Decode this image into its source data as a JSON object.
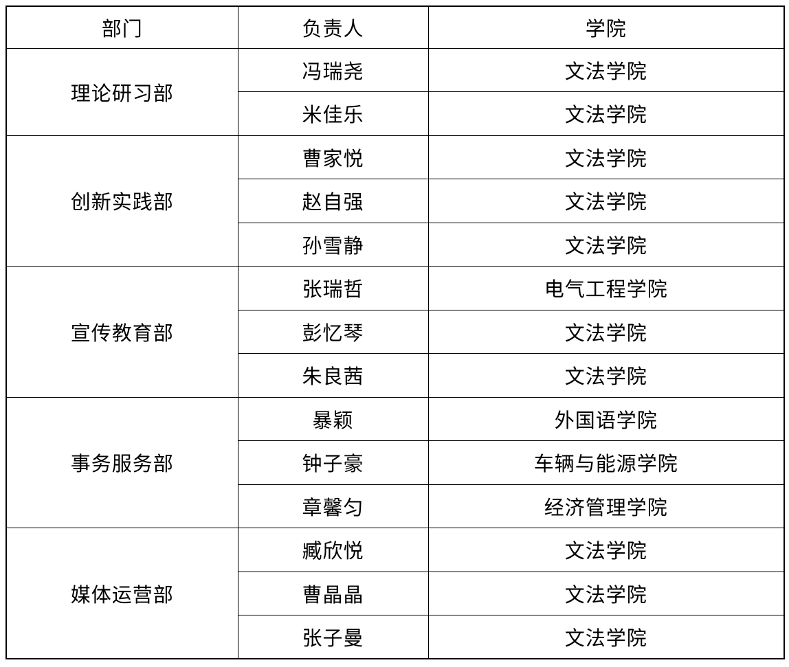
{
  "table": {
    "headers": {
      "department": "部门",
      "leader": "负责人",
      "college": "学院"
    },
    "groups": [
      {
        "department": "理论研习部",
        "members": [
          {
            "name": "冯瑞尧",
            "college": "文法学院"
          },
          {
            "name": "米佳乐",
            "college": "文法学院"
          }
        ]
      },
      {
        "department": "创新实践部",
        "members": [
          {
            "name": "曹家悦",
            "college": "文法学院"
          },
          {
            "name": "赵自强",
            "college": "文法学院"
          },
          {
            "name": "孙雪静",
            "college": "文法学院"
          }
        ]
      },
      {
        "department": "宣传教育部",
        "members": [
          {
            "name": "张瑞哲",
            "college": "电气工程学院"
          },
          {
            "name": "彭忆琴",
            "college": "文法学院"
          },
          {
            "name": "朱良茜",
            "college": "文法学院"
          }
        ]
      },
      {
        "department": "事务服务部",
        "members": [
          {
            "name": "暴颖",
            "college": "外国语学院"
          },
          {
            "name": "钟子豪",
            "college": "车辆与能源学院"
          },
          {
            "name": "章馨匀",
            "college": "经济管理学院"
          }
        ]
      },
      {
        "department": "媒体运营部",
        "members": [
          {
            "name": "臧欣悦",
            "college": "文法学院"
          },
          {
            "name": "曹晶晶",
            "college": "文法学院"
          },
          {
            "name": "张子曼",
            "college": "文法学院"
          }
        ]
      }
    ]
  }
}
